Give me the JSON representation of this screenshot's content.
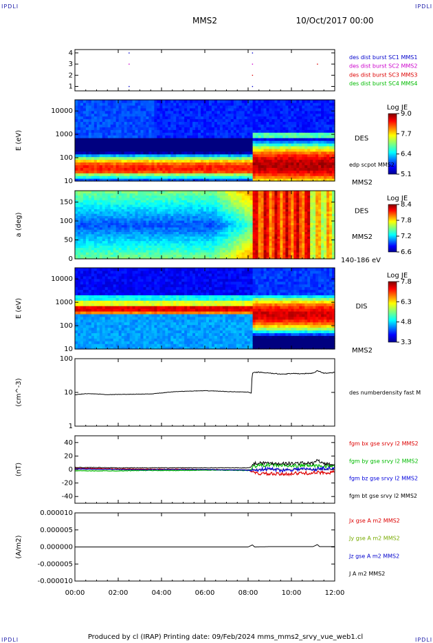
{
  "header": {
    "mission": "MMS2",
    "date": "10/Oct/2017 00:00",
    "corner_label": "IPDLI"
  },
  "footer": {
    "text": "Produced by cl (IRAP)   Printing date: 09/Feb/2024   mms_mms2_srvy_vue_web1.cl"
  },
  "colors": {
    "sc1": "#0000cc",
    "sc2": "#cc00cc",
    "sc3": "#dd0000",
    "sc4": "#00bb00",
    "bx": "#dd0000",
    "by": "#00bb00",
    "bz": "#0000dd",
    "bt": "#000000",
    "jx": "#dd0000",
    "jy": "#77aa00",
    "jz": "#0000cc",
    "j": "#000000"
  },
  "time_axis": {
    "ticks": [
      "00:00",
      "02:00",
      "04:00",
      "06:00",
      "08:00",
      "10:00",
      "12:00"
    ],
    "range_hours": [
      0,
      12
    ]
  },
  "chart_data": [
    {
      "type": "scatter",
      "panel": "burst",
      "yticks": [
        "1",
        "2",
        "3",
        "4"
      ],
      "ylim": [
        0.6,
        4.3
      ],
      "legend": [
        {
          "text": "des dist burst SC1 MMS1",
          "color": "sc1"
        },
        {
          "text": "des dist burst SC2 MMS2",
          "color": "sc2"
        },
        {
          "text": "des dist burst SC3 MMS3",
          "color": "sc3"
        },
        {
          "text": "des dist burst SC4 MMS4",
          "color": "sc4"
        }
      ],
      "points": [
        {
          "t": 2.5,
          "y": 4,
          "color": "sc1"
        },
        {
          "t": 8.2,
          "y": 4,
          "color": "sc1"
        },
        {
          "t": 2.5,
          "y": 3,
          "color": "sc2"
        },
        {
          "t": 8.2,
          "y": 3,
          "color": "sc2"
        },
        {
          "t": 11.2,
          "y": 3,
          "color": "sc3"
        },
        {
          "t": 8.2,
          "y": 2,
          "color": "sc3"
        },
        {
          "t": 8.2,
          "y": 1,
          "color": "sc1"
        },
        {
          "t": 2.5,
          "y": 1,
          "color": "sc1"
        }
      ]
    },
    {
      "type": "heatmap",
      "panel": "des_energy",
      "ylabel": "E (eV)",
      "yscale": "log",
      "ylim": [
        10,
        30000
      ],
      "yticks": [
        "10",
        "100",
        "1000",
        "10000"
      ],
      "side_label": "DES",
      "side_sub": "edp scpot MMS2",
      "mission_label": "MMS2",
      "colorbar": {
        "title": "Log JE",
        "ticks": [
          "5.1",
          "6.4",
          "7.7",
          "9.0"
        ],
        "range": [
          5.1,
          9.0
        ]
      }
    },
    {
      "type": "heatmap",
      "panel": "pitch",
      "ylabel": "a (deg)",
      "ylim": [
        0,
        180
      ],
      "yticks": [
        "0",
        "50",
        "100",
        "150"
      ],
      "side_label": "DES",
      "mission_label": "MMS2",
      "energy_label": "140-186 eV",
      "colorbar": {
        "title": "Log JE",
        "ticks": [
          "6.6",
          "7.2",
          "7.8",
          "8.4"
        ],
        "range": [
          6.6,
          8.4
        ]
      }
    },
    {
      "type": "heatmap",
      "panel": "dis_energy",
      "ylabel": "E (eV)",
      "yscale": "log",
      "ylim": [
        10,
        30000
      ],
      "yticks": [
        "10",
        "100",
        "1000",
        "10000"
      ],
      "side_label": "DIS",
      "mission_label": "MMS2",
      "colorbar": {
        "title": "Log JE",
        "ticks": [
          "3.3",
          "4.8",
          "6.3",
          "7.8"
        ],
        "range": [
          3.3,
          7.8
        ]
      }
    },
    {
      "type": "line",
      "panel": "density",
      "ylabel": "(cm^-3)",
      "yscale": "log",
      "ylim": [
        1,
        100
      ],
      "yticks": [
        "1",
        "10",
        "100"
      ],
      "legend": [
        {
          "text": "des numberdensity fast M",
          "color": "bt"
        }
      ],
      "series": [
        {
          "name": "des numberdensity fast M",
          "color": "bt",
          "x": [
            0,
            0.2,
            0.5,
            1,
            1.5,
            2,
            2.5,
            3,
            3.5,
            4,
            4.5,
            5,
            5.5,
            6,
            6.5,
            7,
            7.5,
            8.0,
            8.15,
            8.2,
            8.5,
            9,
            9.5,
            10,
            10.5,
            11,
            11.2,
            11.5,
            12
          ],
          "y": [
            8.4,
            8.8,
            9.2,
            9.0,
            8.6,
            8.7,
            8.8,
            8.9,
            9.0,
            9.6,
            10.4,
            10.8,
            11.0,
            11.2,
            11.0,
            10.6,
            10.4,
            10.2,
            9.4,
            38,
            40,
            37,
            35,
            36,
            36,
            37,
            44,
            37,
            39
          ]
        }
      ]
    },
    {
      "type": "line",
      "panel": "bfield",
      "ylabel": "(nT)",
      "ylim": [
        -50,
        50
      ],
      "yticks": [
        "-40",
        "-20",
        "0",
        "20",
        "40"
      ],
      "legend": [
        {
          "text": "fgm bx gse srvy l2 MMS2",
          "color": "bx"
        },
        {
          "text": "fgm by gse srvy l2 MMS2",
          "color": "by"
        },
        {
          "text": "fgm bz gse srvy l2 MMS2",
          "color": "bz"
        },
        {
          "text": "fgm bt gse srvy l2 MMS2",
          "color": "bt"
        }
      ],
      "series": [
        {
          "name": "fgm bx gse srvy l2 MMS2",
          "color": "bx",
          "x": [
            0,
            1,
            2,
            3,
            4,
            5,
            6,
            7,
            8,
            8.15,
            8.25,
            8.5,
            9,
            9.5,
            10,
            10.5,
            11,
            11.5,
            12
          ],
          "y": [
            2,
            1.5,
            1,
            0.5,
            0.5,
            0.5,
            0,
            -0.5,
            -1,
            -3,
            -5,
            -6,
            -6.5,
            -7,
            -6,
            -5.5,
            -5,
            -4.5,
            -4
          ]
        },
        {
          "name": "fgm by gse srvy l2 MMS2",
          "color": "by",
          "x": [
            0,
            1,
            2,
            3,
            4,
            5,
            6,
            7,
            8,
            8.15,
            8.25,
            8.5,
            9,
            9.5,
            10,
            10.5,
            11,
            11.5,
            12
          ],
          "y": [
            -2,
            -2,
            -2,
            -1.5,
            -1.5,
            -1.5,
            -1,
            -1,
            -1.5,
            0,
            5,
            6,
            7,
            6,
            5,
            6,
            6,
            5,
            5
          ]
        },
        {
          "name": "fgm bz gse srvy l2 MMS2",
          "color": "bz",
          "x": [
            0,
            1,
            2,
            3,
            4,
            5,
            6,
            7,
            8,
            8.15,
            8.25,
            8.5,
            9,
            9.5,
            10,
            10.5,
            11,
            11.5,
            12
          ],
          "y": [
            1,
            0.5,
            0,
            -0.5,
            0,
            0,
            0,
            -0.5,
            -1,
            -2,
            -1,
            0,
            1,
            -1,
            0,
            1,
            0,
            2,
            1
          ]
        },
        {
          "name": "fgm bt gse srvy l2 MMS2",
          "color": "bt",
          "x": [
            0,
            1,
            2,
            3,
            4,
            5,
            6,
            7,
            8,
            8.15,
            8.25,
            8.5,
            9,
            9.5,
            10,
            10.5,
            11,
            11.2,
            11.5,
            12
          ],
          "y": [
            3,
            3,
            2.5,
            2.5,
            2.5,
            2.5,
            2.5,
            2.5,
            2.5,
            4,
            9,
            10,
            9.5,
            9,
            9,
            9.5,
            9,
            14,
            8,
            7
          ]
        }
      ]
    },
    {
      "type": "line",
      "panel": "current",
      "ylabel": "(A/m2)",
      "ylim": [
        -1e-05,
        1e-05
      ],
      "yticks": [
        "-0.000010",
        "-0.000005",
        "0.000000",
        "0.000005",
        "0.000010"
      ],
      "legend": [
        {
          "text": "Jx gse A m2 MMS2",
          "color": "jx"
        },
        {
          "text": "Jy gse A m2 MMS2",
          "color": "jy"
        },
        {
          "text": "Jz gse A m2 MMS2",
          "color": "jz"
        },
        {
          "text": "J A m2 MMS2",
          "color": "j"
        }
      ],
      "series": [
        {
          "name": "J A m2 MMS2",
          "color": "j",
          "x": [
            0,
            2,
            4,
            6,
            8,
            8.2,
            8.3,
            9,
            10,
            11,
            11.2,
            11.3,
            12
          ],
          "y": [
            0,
            0,
            0,
            0,
            0,
            6e-07,
            0,
            1e-07,
            1e-07,
            1e-07,
            7e-07,
            1e-07,
            1e-07
          ]
        }
      ]
    }
  ]
}
